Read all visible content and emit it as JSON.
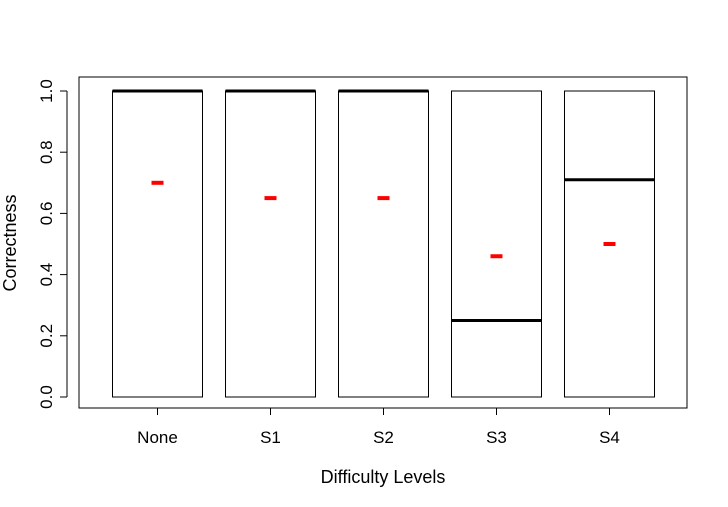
{
  "chart_data": {
    "type": "box",
    "title": "",
    "xlabel": "Difficulty Levels",
    "ylabel": "Correctness",
    "ylim": [
      0,
      1
    ],
    "yticks": [
      0.0,
      0.2,
      0.4,
      0.6,
      0.8,
      1.0
    ],
    "ytick_labels": [
      "0.0",
      "0.2",
      "0.4",
      "0.6",
      "0.8",
      "1.0"
    ],
    "categories": [
      "None",
      "S1",
      "S2",
      "S3",
      "S4"
    ],
    "boxes": [
      {
        "category": "None",
        "min": 0,
        "q1": 0,
        "median": 1.0,
        "q3": 1.0,
        "max": 1.0,
        "mean": 0.7
      },
      {
        "category": "S1",
        "min": 0,
        "q1": 0,
        "median": 1.0,
        "q3": 1.0,
        "max": 1.0,
        "mean": 0.65
      },
      {
        "category": "S2",
        "min": 0,
        "q1": 0,
        "median": 1.0,
        "q3": 1.0,
        "max": 1.0,
        "mean": 0.65
      },
      {
        "category": "S3",
        "min": 0,
        "q1": 0,
        "median": 0.25,
        "q3": 1.0,
        "max": 1.0,
        "mean": 0.46
      },
      {
        "category": "S4",
        "min": 0,
        "q1": 0,
        "median": 0.71,
        "q3": 1.0,
        "max": 1.0,
        "mean": 0.5
      }
    ],
    "mean_marker_color": "#ff0000",
    "box_color": "#000000",
    "grid": false,
    "legend": "none"
  }
}
